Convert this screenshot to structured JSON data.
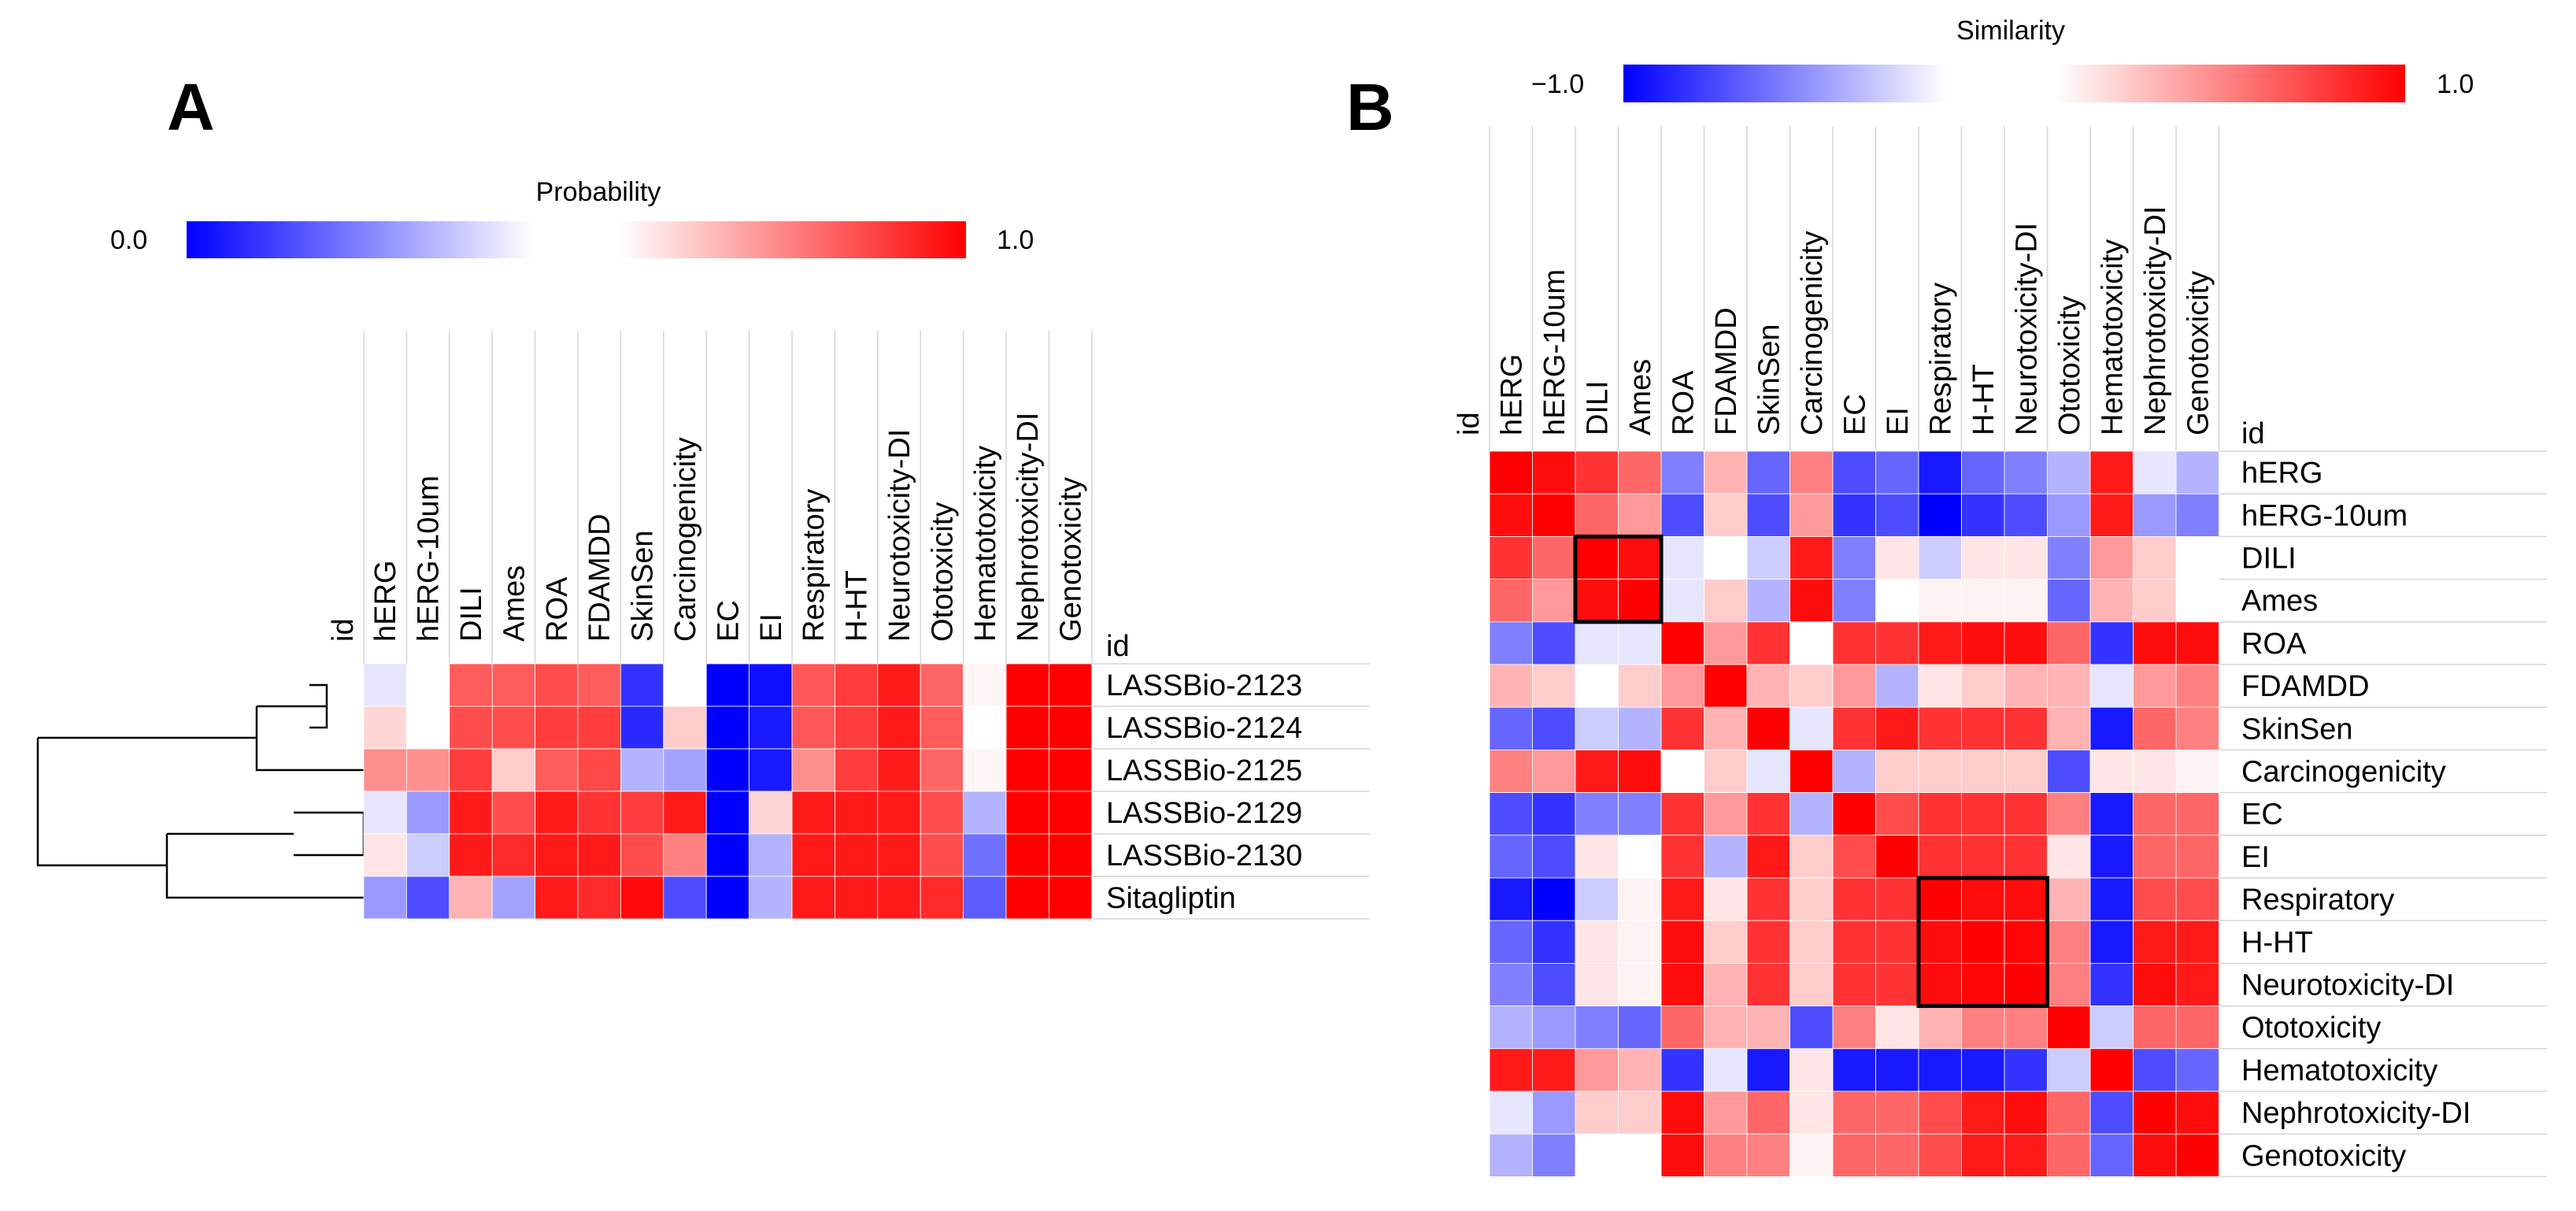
{
  "panel_a": {
    "letter": "A",
    "colorbar": {
      "title": "Probability",
      "min_label": "0.0",
      "max_label": "1.0"
    }
  },
  "panel_b": {
    "letter": "B",
    "colorbar": {
      "title": "Similarity",
      "min_label": "−1.0",
      "max_label": "1.0"
    }
  },
  "colors": {
    "low": "#0000ff",
    "mid": "#ffffff",
    "high": "#ff0000"
  },
  "chart_data": [
    {
      "type": "heatmap",
      "title": "",
      "colorbar_title": "Probability",
      "zlim": [
        0,
        1
      ],
      "index_label": "id",
      "column_index_label": "id",
      "dendrogram": "rows",
      "columns": [
        "hERG",
        "hERG-10um",
        "DILI",
        "Ames",
        "ROA",
        "FDAMDD",
        "SkinSen",
        "Carcinogenicity",
        "EC",
        "EI",
        "Respiratory",
        "H-HT",
        "Neurotoxicity-DI",
        "Ototoxicity",
        "Hematotoxicity",
        "Nephrotoxicity-DI",
        "Genotoxicity"
      ],
      "rows": [
        "LASSBio-2123",
        "LASSBio-2124",
        "LASSBio-2125",
        "LASSBio-2129",
        "LASSBio-2130",
        "Sitagliptin"
      ],
      "values": [
        [
          0.45,
          0.5,
          0.82,
          0.82,
          0.85,
          0.82,
          0.1,
          0.5,
          0.0,
          0.03,
          0.83,
          0.88,
          0.95,
          0.8,
          0.52,
          1.0,
          1.0
        ],
        [
          0.58,
          0.5,
          0.85,
          0.85,
          0.88,
          0.88,
          0.08,
          0.6,
          0.0,
          0.05,
          0.83,
          0.88,
          0.95,
          0.82,
          0.5,
          1.0,
          1.0
        ],
        [
          0.72,
          0.72,
          0.88,
          0.6,
          0.82,
          0.86,
          0.35,
          0.32,
          0.0,
          0.05,
          0.72,
          0.88,
          0.95,
          0.8,
          0.52,
          1.0,
          1.0
        ],
        [
          0.45,
          0.3,
          0.95,
          0.85,
          0.95,
          0.9,
          0.88,
          0.95,
          0.0,
          0.58,
          0.95,
          0.95,
          0.95,
          0.85,
          0.35,
          1.0,
          1.0
        ],
        [
          0.55,
          0.4,
          0.95,
          0.92,
          0.95,
          0.95,
          0.85,
          0.75,
          0.0,
          0.35,
          0.95,
          0.95,
          0.95,
          0.85,
          0.22,
          1.0,
          1.0
        ],
        [
          0.3,
          0.15,
          0.65,
          0.32,
          0.95,
          0.92,
          0.98,
          0.15,
          0.0,
          0.35,
          0.95,
          0.95,
          0.95,
          0.92,
          0.18,
          1.0,
          1.0
        ]
      ]
    },
    {
      "type": "heatmap",
      "title": "",
      "colorbar_title": "Similarity",
      "zlim": [
        -1,
        1
      ],
      "index_label": "id",
      "column_index_label": "id",
      "columns": [
        "hERG",
        "hERG-10um",
        "DILI",
        "Ames",
        "ROA",
        "FDAMDD",
        "SkinSen",
        "Carcinogenicity",
        "EC",
        "EI",
        "Respiratory",
        "H-HT",
        "Neurotoxicity-DI",
        "Ototoxicity",
        "Hematotoxicity",
        "Nephrotoxicity-DI",
        "Genotoxicity"
      ],
      "rows": [
        "hERG",
        "hERG-10um",
        "DILI",
        "Ames",
        "ROA",
        "FDAMDD",
        "SkinSen",
        "Carcinogenicity",
        "EC",
        "EI",
        "Respiratory",
        "H-HT",
        "Neurotoxicity-DI",
        "Ototoxicity",
        "Hematotoxicity",
        "Nephrotoxicity-DI",
        "Genotoxicity"
      ],
      "highlighted_blocks": [
        {
          "rows": [
            "DILI",
            "Ames"
          ],
          "columns": [
            "DILI",
            "Ames"
          ]
        },
        {
          "rows": [
            "Respiratory",
            "H-HT",
            "Neurotoxicity-DI"
          ],
          "columns": [
            "Respiratory",
            "H-HT",
            "Neurotoxicity-DI"
          ]
        }
      ],
      "values": [
        [
          1.0,
          0.95,
          0.8,
          0.6,
          -0.5,
          0.3,
          -0.6,
          0.5,
          -0.7,
          -0.6,
          -0.9,
          -0.6,
          -0.5,
          -0.3,
          0.9,
          -0.1,
          -0.3
        ],
        [
          0.95,
          1.0,
          0.6,
          0.4,
          -0.7,
          0.2,
          -0.7,
          0.4,
          -0.8,
          -0.7,
          -1.0,
          -0.8,
          -0.7,
          -0.4,
          0.9,
          -0.4,
          -0.5
        ],
        [
          0.8,
          0.6,
          1.0,
          0.95,
          -0.1,
          0.0,
          -0.2,
          0.9,
          -0.5,
          0.1,
          -0.2,
          0.1,
          0.1,
          -0.5,
          0.4,
          0.2,
          0.0
        ],
        [
          0.6,
          0.4,
          0.95,
          1.0,
          -0.1,
          0.2,
          -0.3,
          0.95,
          -0.5,
          0.0,
          0.05,
          0.05,
          0.05,
          -0.6,
          0.3,
          0.2,
          0.0
        ],
        [
          -0.5,
          -0.7,
          -0.1,
          -0.1,
          1.0,
          0.4,
          0.8,
          0.0,
          0.8,
          0.8,
          0.9,
          0.95,
          0.95,
          0.6,
          -0.8,
          0.95,
          0.95
        ],
        [
          0.3,
          0.2,
          0.0,
          0.2,
          0.4,
          1.0,
          0.3,
          0.2,
          0.4,
          -0.3,
          0.1,
          0.2,
          0.3,
          0.3,
          -0.1,
          0.4,
          0.5
        ],
        [
          -0.6,
          -0.7,
          -0.2,
          -0.3,
          0.8,
          0.3,
          1.0,
          -0.1,
          0.8,
          0.9,
          0.8,
          0.8,
          0.8,
          0.3,
          -0.9,
          0.6,
          0.5
        ],
        [
          0.5,
          0.4,
          0.9,
          0.95,
          0.0,
          0.2,
          -0.1,
          1.0,
          -0.3,
          0.2,
          0.2,
          0.2,
          0.2,
          -0.7,
          0.1,
          0.1,
          0.05
        ],
        [
          -0.7,
          -0.8,
          -0.5,
          -0.5,
          0.8,
          0.4,
          0.8,
          -0.3,
          1.0,
          0.7,
          0.8,
          0.8,
          0.8,
          0.5,
          -0.9,
          0.6,
          0.6
        ],
        [
          -0.6,
          -0.7,
          0.1,
          0.0,
          0.8,
          -0.3,
          0.9,
          0.2,
          0.7,
          1.0,
          0.8,
          0.8,
          0.8,
          0.1,
          -0.9,
          0.6,
          0.6
        ],
        [
          -0.9,
          -1.0,
          -0.2,
          0.05,
          0.9,
          0.1,
          0.8,
          0.2,
          0.8,
          0.8,
          1.0,
          0.95,
          0.95,
          0.3,
          -0.9,
          0.7,
          0.7
        ],
        [
          -0.6,
          -0.8,
          0.1,
          0.05,
          0.95,
          0.2,
          0.8,
          0.2,
          0.8,
          0.8,
          0.95,
          1.0,
          0.98,
          0.5,
          -0.9,
          0.9,
          0.9
        ],
        [
          -0.5,
          -0.7,
          0.1,
          0.05,
          0.95,
          0.3,
          0.8,
          0.2,
          0.8,
          0.8,
          0.95,
          0.98,
          1.0,
          0.5,
          -0.8,
          0.95,
          0.9
        ],
        [
          -0.3,
          -0.4,
          -0.5,
          -0.6,
          0.6,
          0.3,
          0.3,
          -0.7,
          0.5,
          0.1,
          0.3,
          0.5,
          0.5,
          1.0,
          -0.2,
          0.6,
          0.6
        ],
        [
          0.9,
          0.9,
          0.4,
          0.3,
          -0.8,
          -0.1,
          -0.9,
          0.1,
          -0.9,
          -0.9,
          -0.9,
          -0.9,
          -0.8,
          -0.2,
          1.0,
          -0.7,
          -0.6
        ],
        [
          -0.1,
          -0.4,
          0.2,
          0.2,
          0.95,
          0.4,
          0.6,
          0.1,
          0.6,
          0.6,
          0.7,
          0.9,
          0.95,
          0.6,
          -0.7,
          1.0,
          0.95
        ],
        [
          -0.3,
          -0.5,
          0.0,
          0.0,
          0.95,
          0.5,
          0.5,
          0.05,
          0.6,
          0.6,
          0.7,
          0.9,
          0.9,
          0.6,
          -0.6,
          0.95,
          1.0
        ]
      ]
    }
  ]
}
